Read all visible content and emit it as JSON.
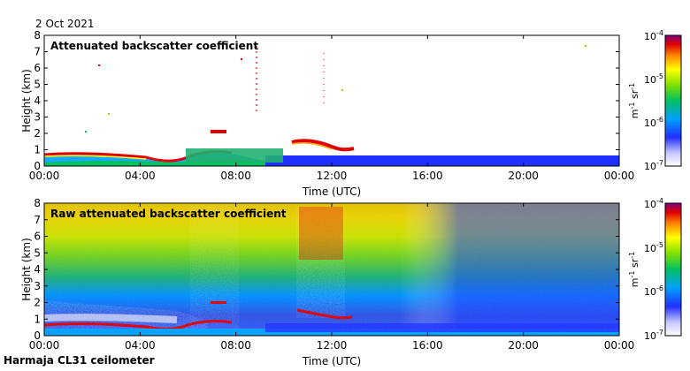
{
  "date_label": "2 Oct 2021",
  "footer_label": "Harmaja CL31 ceilometer",
  "chart_data": [
    {
      "type": "heatmap",
      "title": "Attenuated backscatter coefficient",
      "xlabel": "Time (UTC)",
      "ylabel": "Height (km)",
      "x_ticks": [
        "00:00",
        "04:00",
        "08:00",
        "12:00",
        "16:00",
        "20:00",
        "00:00"
      ],
      "y_ticks": [
        0,
        1,
        2,
        3,
        4,
        5,
        6,
        7,
        8
      ],
      "xlim_hours": [
        0,
        24
      ],
      "ylim_km": [
        0,
        8
      ],
      "colorbar": {
        "label": "m-1 sr-1",
        "scale": "log",
        "range": [
          1e-07,
          0.0001
        ],
        "ticks": [
          "10-7",
          "10-6",
          "10-5",
          "10-4"
        ]
      },
      "features": [
        {
          "name": "boundary layer",
          "from_h": 0,
          "to_h": 6,
          "height_km": 0.7
        },
        {
          "name": "cloud layer",
          "from_h": 6.8,
          "to_h": 7.5,
          "height_km": 2.15
        },
        {
          "name": "cloud layer",
          "from_h": 10.5,
          "to_h": 12.5,
          "height_km": 1.3
        }
      ]
    },
    {
      "type": "heatmap",
      "title": "Raw attenuated backscatter coefficient",
      "xlabel": "Time (UTC)",
      "ylabel": "Height (km)",
      "x_ticks": [
        "00:00",
        "04:00",
        "08:00",
        "12:00",
        "16:00",
        "20:00",
        "00:00"
      ],
      "y_ticks": [
        0,
        1,
        2,
        3,
        4,
        5,
        6,
        7,
        8
      ],
      "xlim_hours": [
        0,
        24
      ],
      "ylim_km": [
        0,
        8
      ],
      "colorbar": {
        "label": "m-1 sr-1",
        "scale": "log",
        "range": [
          1e-07,
          0.0001
        ],
        "ticks": [
          "10-7",
          "10-6",
          "10-5",
          "10-4"
        ]
      }
    }
  ]
}
